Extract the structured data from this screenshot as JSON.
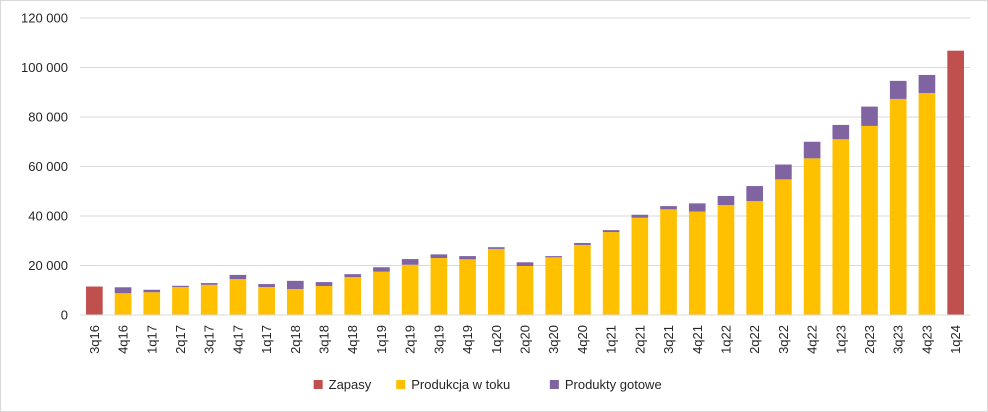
{
  "chart_data": {
    "type": "bar",
    "stacked": true,
    "categories": [
      "3q16",
      "4q16",
      "1q17",
      "2q17",
      "3q17",
      "4q17",
      "1q17",
      "2q18",
      "3q18",
      "4q18",
      "1q19",
      "2q19",
      "3q19",
      "4q19",
      "1q20",
      "2q20",
      "3q20",
      "4q20",
      "1q21",
      "2q21",
      "3q21",
      "4q21",
      "1q22",
      "2q22",
      "3q22",
      "4q22",
      "1q23",
      "2q23",
      "3q23",
      "4q23",
      "1q24"
    ],
    "series": [
      {
        "name": "Zapasy",
        "color": "#c0504d",
        "values": [
          11500,
          0,
          0,
          0,
          0,
          0,
          0,
          0,
          0,
          0,
          0,
          0,
          0,
          0,
          0,
          0,
          0,
          0,
          0,
          0,
          0,
          0,
          0,
          0,
          0,
          0,
          0,
          0,
          0,
          0,
          106800
        ]
      },
      {
        "name": "Produkcja w toku",
        "color": "#ffc000",
        "values": [
          0,
          8800,
          9200,
          11300,
          12200,
          14500,
          11300,
          10500,
          11700,
          15300,
          17500,
          20300,
          23000,
          22500,
          26700,
          19800,
          23300,
          28300,
          33500,
          39300,
          42700,
          41800,
          44400,
          46000,
          54800,
          63300,
          71000,
          76400,
          87300,
          89700,
          0
        ]
      },
      {
        "name": "Produkty gotowe",
        "color": "#8064a2",
        "values": [
          0,
          2400,
          1000,
          500,
          700,
          1700,
          1200,
          3300,
          1600,
          1200,
          1800,
          2300,
          1500,
          1300,
          700,
          1500,
          500,
          800,
          800,
          1200,
          1300,
          3300,
          3700,
          6100,
          6000,
          6700,
          5800,
          7800,
          7300,
          7300,
          0
        ]
      }
    ],
    "ylim": [
      0,
      120000
    ],
    "yticks": [
      0,
      20000,
      40000,
      60000,
      80000,
      100000,
      120000
    ],
    "ytick_labels": [
      "0",
      "20 000",
      "40 000",
      "60 000",
      "80 000",
      "100 000",
      "120 000"
    ],
    "grid": true,
    "legend_position": "bottom"
  }
}
